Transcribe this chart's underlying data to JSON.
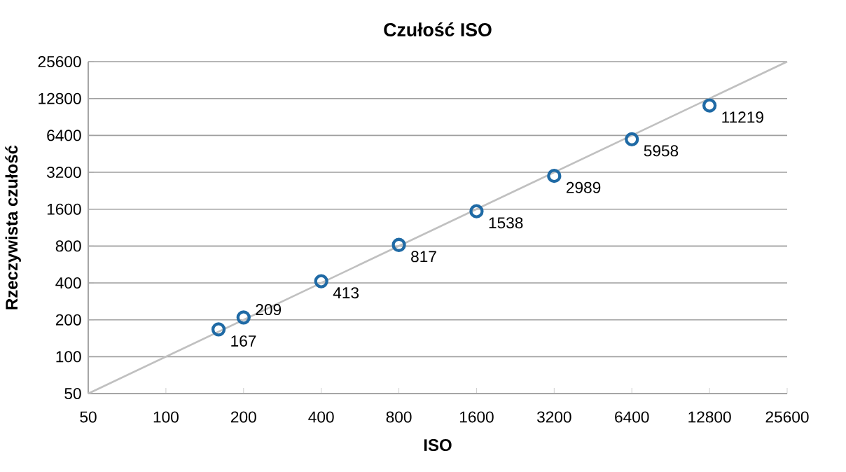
{
  "chart_data": {
    "type": "scatter",
    "title": "Czułość ISO",
    "xlabel": "ISO",
    "ylabel": "Rzeczywista czułość",
    "log": "xy",
    "grid": "y",
    "marker": "circle",
    "xlim": [
      50,
      25600
    ],
    "ylim": [
      50,
      25600
    ],
    "xticks": [
      50,
      100,
      200,
      400,
      800,
      1600,
      3200,
      6400,
      12800,
      25600
    ],
    "yticks": [
      50,
      100,
      200,
      400,
      800,
      1600,
      3200,
      6400,
      12800,
      25600
    ],
    "series": [
      {
        "type": "line",
        "color": "#c0c0c0",
        "x": [
          50,
          25600
        ],
        "values": [
          50,
          25600
        ],
        "marker": "none"
      },
      {
        "color": "#1f6aa5",
        "x": [
          160,
          200,
          400,
          800,
          1600,
          3200,
          6400,
          12800
        ],
        "values": [
          167,
          209,
          413,
          817,
          1538,
          2989,
          5958,
          11219
        ],
        "value_labels": [
          "167",
          "209",
          "413",
          "817",
          "1538",
          "2989",
          "5958",
          "11219"
        ]
      }
    ]
  }
}
